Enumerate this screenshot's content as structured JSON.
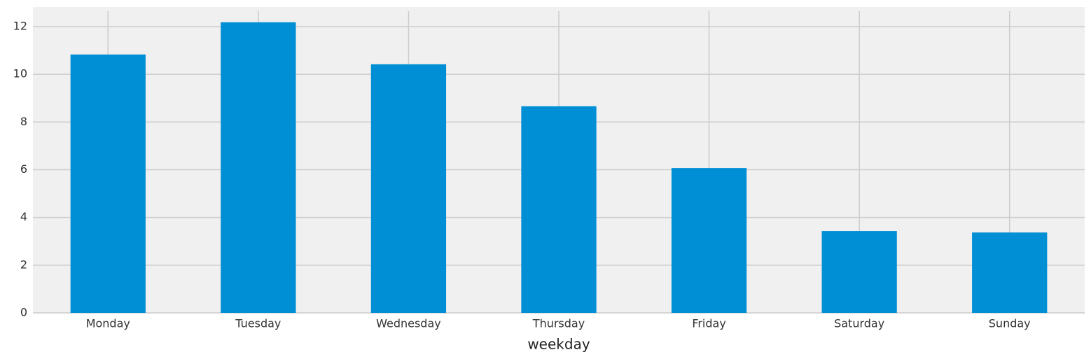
{
  "chart_data": {
    "type": "bar",
    "x_label": "weekday",
    "categories": [
      "Monday",
      "Tuesday",
      "Wednesday",
      "Thursday",
      "Friday",
      "Saturday",
      "Sunday"
    ],
    "values": [
      10.83,
      12.18,
      10.42,
      8.66,
      6.07,
      3.43,
      3.37
    ],
    "color": "#008fd5",
    "ylim": [
      0,
      12.82
    ],
    "yticks": [
      0,
      2,
      4,
      6,
      8,
      10,
      12
    ],
    "grid": true
  }
}
